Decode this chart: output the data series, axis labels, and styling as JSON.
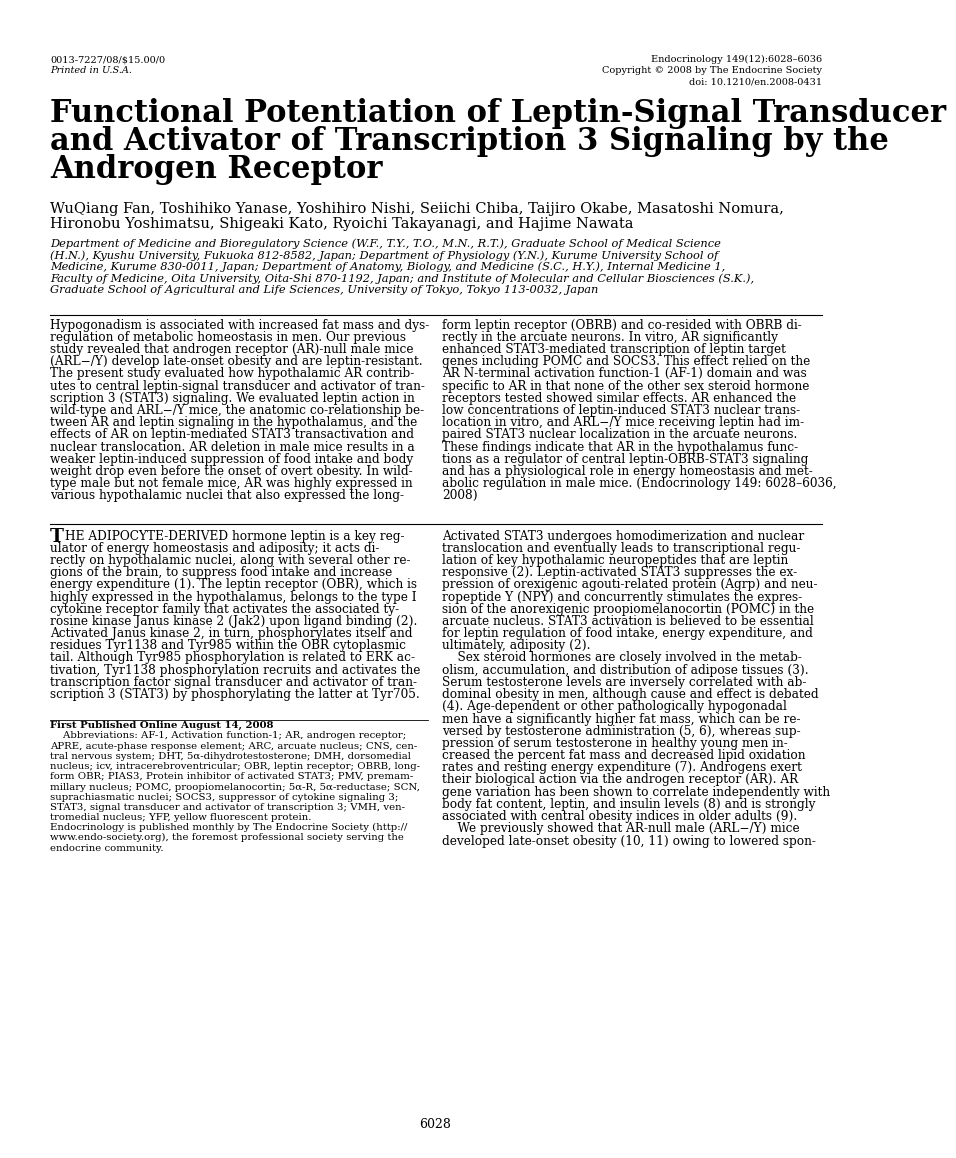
{
  "page_width": 8.5,
  "page_height": 11.38,
  "bg_color": "#ffffff",
  "header_left_line1": "0013-7227/08/$15.00/0",
  "header_left_line2": "Printed in U.S.A.",
  "header_right_line1": "Endocrinology 149(12):6028–6036",
  "header_right_line2": "Copyright © 2008 by The Endocrine Society",
  "header_right_line3": "doi: 10.1210/en.2008-0431",
  "title_line1": "Functional Potentiation of Leptin-Signal Transducer",
  "title_line2": "and Activator of Transcription 3 Signaling by the",
  "title_line3": "Androgen Receptor",
  "authors_line1": "WuQiang Fan, Toshihiko Yanase, Yoshihiro Nishi, Seiichi Chiba, Taijiro Okabe, Masatoshi Nomura,",
  "authors_line2": "Hironobu Yoshimatsu, Shigeaki Kato, Ryoichi Takayanagi, and Hajime Nawata",
  "affil_lines": [
    "Department of Medicine and Bioregulatory Science (W.F., T.Y., T.O., M.N., R.T.), Graduate School of Medical Science",
    "(H.N.), Kyushu University, Fukuoka 812-8582, Japan; Department of Physiology (Y.N.), Kurume University School of",
    "Medicine, Kurume 830-0011, Japan; Department of Anatomy, Biology, and Medicine (S.C., H.Y.), Internal Medicine 1,",
    "Faculty of Medicine, Oita University, Oita-Shi 870-1192, Japan; and Institute of Molecular and Cellular Biosciences (S.K.),",
    "Graduate School of Agricultural and Life Sciences, University of Tokyo, Tokyo 113-0032, Japan"
  ],
  "abs_left_lines": [
    "Hypogonadism is associated with increased fat mass and dys-",
    "regulation of metabolic homeostasis in men. Our previous",
    "study revealed that androgen receptor (AR)-null male mice",
    "(ARL−/Y) develop late-onset obesity and are leptin-resistant.",
    "The present study evaluated how hypothalamic AR contrib-",
    "utes to central leptin-signal transducer and activator of tran-",
    "scription 3 (STAT3) signaling. We evaluated leptin action in",
    "wild-type and ARL−/Y mice, the anatomic co-relationship be-",
    "tween AR and leptin signaling in the hypothalamus, and the",
    "effects of AR on leptin-mediated STAT3 transactivation and",
    "nuclear translocation. AR deletion in male mice results in a",
    "weaker leptin-induced suppression of food intake and body",
    "weight drop even before the onset of overt obesity. In wild-",
    "type male but not female mice, AR was highly expressed in",
    "various hypothalamic nuclei that also expressed the long-"
  ],
  "abs_right_lines": [
    "form leptin receptor (OBRB) and co-resided with OBRB di-",
    "rectly in the arcuate neurons. In vitro, AR significantly",
    "enhanced STAT3-mediated transcription of leptin target",
    "genes including POMC and SOCS3. This effect relied on the",
    "AR N-terminal activation function-1 (AF-1) domain and was",
    "specific to AR in that none of the other sex steroid hormone",
    "receptors tested showed similar effects. AR enhanced the",
    "low concentrations of leptin-induced STAT3 nuclear trans-",
    "location in vitro, and ARL−/Y mice receiving leptin had im-",
    "paired STAT3 nuclear localization in the arcuate neurons.",
    "These findings indicate that AR in the hypothalamus func-",
    "tions as a regulator of central leptin-OBRB-STAT3 signaling",
    "and has a physiological role in energy homeostasis and met-",
    "abolic regulation in male mice. (Endocrinology 149: 6028–6036,",
    "2008)"
  ],
  "body_left_lines": [
    "HE ADIPOCYTE-DERIVED hormone leptin is a key reg-",
    "ulator of energy homeostasis and adiposity; it acts di-",
    "rectly on hypothalamic nuclei, along with several other re-",
    "gions of the brain, to suppress food intake and increase",
    "energy expenditure (1). The leptin receptor (OBR), which is",
    "highly expressed in the hypothalamus, belongs to the type I",
    "cytokine receptor family that activates the associated ty-",
    "rosine kinase Janus kinase 2 (Jak2) upon ligand binding (2).",
    "Activated Janus kinase 2, in turn, phosphorylates itself and",
    "residues Tyr1138 and Tyr985 within the OBR cytoplasmic",
    "tail. Although Tyr985 phosphorylation is related to ERK ac-",
    "tivation, Tyr1138 phosphorylation recruits and activates the",
    "transcription factor signal transducer and activator of tran-",
    "scription 3 (STAT3) by phosphorylating the latter at Tyr705."
  ],
  "body_right_lines": [
    "Activated STAT3 undergoes homodimerization and nuclear",
    "translocation and eventually leads to transcriptional regu-",
    "lation of key hypothalamic neuropeptides that are leptin",
    "responsive (2). Leptin-activated STAT3 suppresses the ex-",
    "pression of orexigenic agouti-related protein (Agrp) and neu-",
    "ropeptide Y (NPY) and concurrently stimulates the expres-",
    "sion of the anorexigenic proopiomelanocortin (POMC) in the",
    "arcuate nucleus. STAT3 activation is believed to be essential",
    "for leptin regulation of food intake, energy expenditure, and",
    "ultimately, adiposity (2).",
    "    Sex steroid hormones are closely involved in the metab-",
    "olism, accumulation, and distribution of adipose tissues (3).",
    "Serum testosterone levels are inversely correlated with ab-",
    "dominal obesity in men, although cause and effect is debated",
    "(4). Age-dependent or other pathologically hypogonadal",
    "men have a significantly higher fat mass, which can be re-",
    "versed by testosterone administration (5, 6), whereas sup-",
    "pression of serum testosterone in healthy young men in-",
    "creased the percent fat mass and decreased lipid oxidation",
    "rates and resting energy expenditure (7). Androgens exert",
    "their biological action via the androgen receptor (AR). AR",
    "gene variation has been shown to correlate independently with",
    "body fat content, leptin, and insulin levels (8) and is strongly",
    "associated with central obesity indices in older adults (9).",
    "    We previously showed that AR-null male (ARL−/Y) mice",
    "developed late-onset obesity (10, 11) owing to lowered spon-"
  ],
  "fn_lines": [
    "First Published Online August 14, 2008",
    "    Abbreviations: AF-1, Activation function-1; AR, androgen receptor;",
    "APRE, acute-phase response element; ARC, arcuate nucleus; CNS, cen-",
    "tral nervous system; DHT, 5α-dihydrotestosterone; DMH, dorsomedial",
    "nucleus; icv, intracerebroventricular; OBR, leptin receptor; OBRB, long-",
    "form OBR; PIAS3, Protein inhibitor of activated STAT3; PMV, premam-",
    "millary nucleus; POMC, proopiomelanocortin; 5α-R, 5α-reductase; SCN,",
    "suprachiasmatic nuclei; SOCS3, suppressor of cytokine signaling 3;",
    "STAT3, signal transducer and activator of transcription 3; VMH, ven-",
    "tromedial nucleus; YFP, yellow fluorescent protein.",
    "Endocrinology is published monthly by The Endocrine Society (http://",
    "www.endo-society.org), the foremost professional society serving the",
    "endocrine community."
  ],
  "page_number": "6028"
}
